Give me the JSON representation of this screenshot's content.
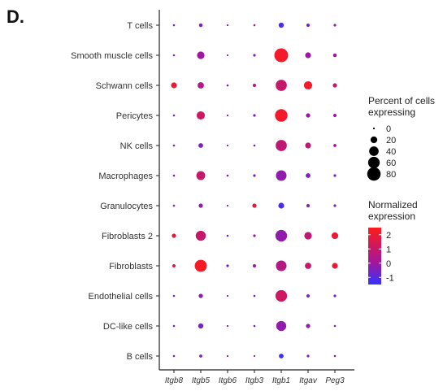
{
  "panel_label": "D.",
  "chart_data": {
    "type": "dotplot",
    "title": "",
    "xlabel": "",
    "ylabel": "",
    "genes": [
      "Itgb8",
      "Itgb5",
      "Itgb6",
      "Itgb3",
      "Itgb1",
      "Itgav",
      "Peg3"
    ],
    "cell_types": [
      "T cells",
      "Smooth muscle cells",
      "Schwann cells",
      "Pericytes",
      "NK cells",
      "Macrophages",
      "Granulocytes",
      "Fibroblasts 2",
      "Fibroblasts",
      "Endothelial cells",
      "DC-like cells",
      "B cells"
    ],
    "percent_expressing": [
      [
        2,
        6,
        1,
        2,
        12,
        5,
        3
      ],
      [
        2,
        25,
        1,
        3,
        85,
        15,
        6
      ],
      [
        15,
        18,
        2,
        5,
        55,
        30,
        8
      ],
      [
        2,
        30,
        1,
        3,
        70,
        8,
        5
      ],
      [
        2,
        10,
        1,
        2,
        55,
        15,
        4
      ],
      [
        2,
        35,
        2,
        3,
        50,
        10,
        3
      ],
      [
        2,
        8,
        1,
        8,
        15,
        5,
        3
      ],
      [
        8,
        45,
        2,
        3,
        60,
        25,
        20
      ],
      [
        5,
        65,
        3,
        5,
        50,
        18,
        15
      ],
      [
        2,
        8,
        1,
        2,
        60,
        5,
        3
      ],
      [
        2,
        12,
        1,
        2,
        45,
        8,
        2
      ],
      [
        2,
        4,
        1,
        1,
        10,
        3,
        2
      ]
    ],
    "normalized_expression": [
      [
        -0.5,
        -0.5,
        -0.5,
        0.5,
        -1.2,
        -0.5,
        -0.2
      ],
      [
        -0.5,
        0,
        -0.5,
        -0.5,
        2.2,
        0,
        0
      ],
      [
        2,
        0.5,
        -0.5,
        0.5,
        1,
        2.2,
        1
      ],
      [
        -0.5,
        1.2,
        -0.5,
        -0.5,
        2.2,
        0,
        0
      ],
      [
        -0.5,
        -0.5,
        -0.5,
        -0.5,
        0.8,
        0.8,
        0
      ],
      [
        -0.5,
        1,
        -0.5,
        -0.5,
        -0.2,
        -0.5,
        -0.5
      ],
      [
        -0.5,
        -0.2,
        -0.5,
        1.8,
        -1.2,
        -0.5,
        -0.5
      ],
      [
        1.8,
        1,
        -0.5,
        0,
        -0.2,
        0.8,
        2
      ],
      [
        1.8,
        2.3,
        -0.5,
        0,
        0.5,
        1,
        2
      ],
      [
        -0.5,
        -0.2,
        -0.5,
        -0.5,
        1.2,
        -0.5,
        -0.5
      ],
      [
        -0.5,
        -0.5,
        -0.5,
        -0.5,
        -0.2,
        -0.2,
        -0.5
      ],
      [
        -0.5,
        -0.5,
        -0.5,
        -0.5,
        -1.4,
        -0.5,
        -0.5
      ]
    ],
    "size_legend": {
      "title_lines": [
        "Percent of cells",
        "expressing"
      ],
      "values": [
        0,
        20,
        40,
        60,
        80
      ]
    },
    "color_legend": {
      "title_lines": [
        "Normalized",
        "expression"
      ],
      "ticks": [
        2,
        1,
        0,
        -1
      ],
      "range": [
        -1.5,
        2.5
      ],
      "low_color": "#3333ff",
      "mid_color": "#a0179f",
      "high_color": "#ff1a1a"
    },
    "grid": false
  }
}
